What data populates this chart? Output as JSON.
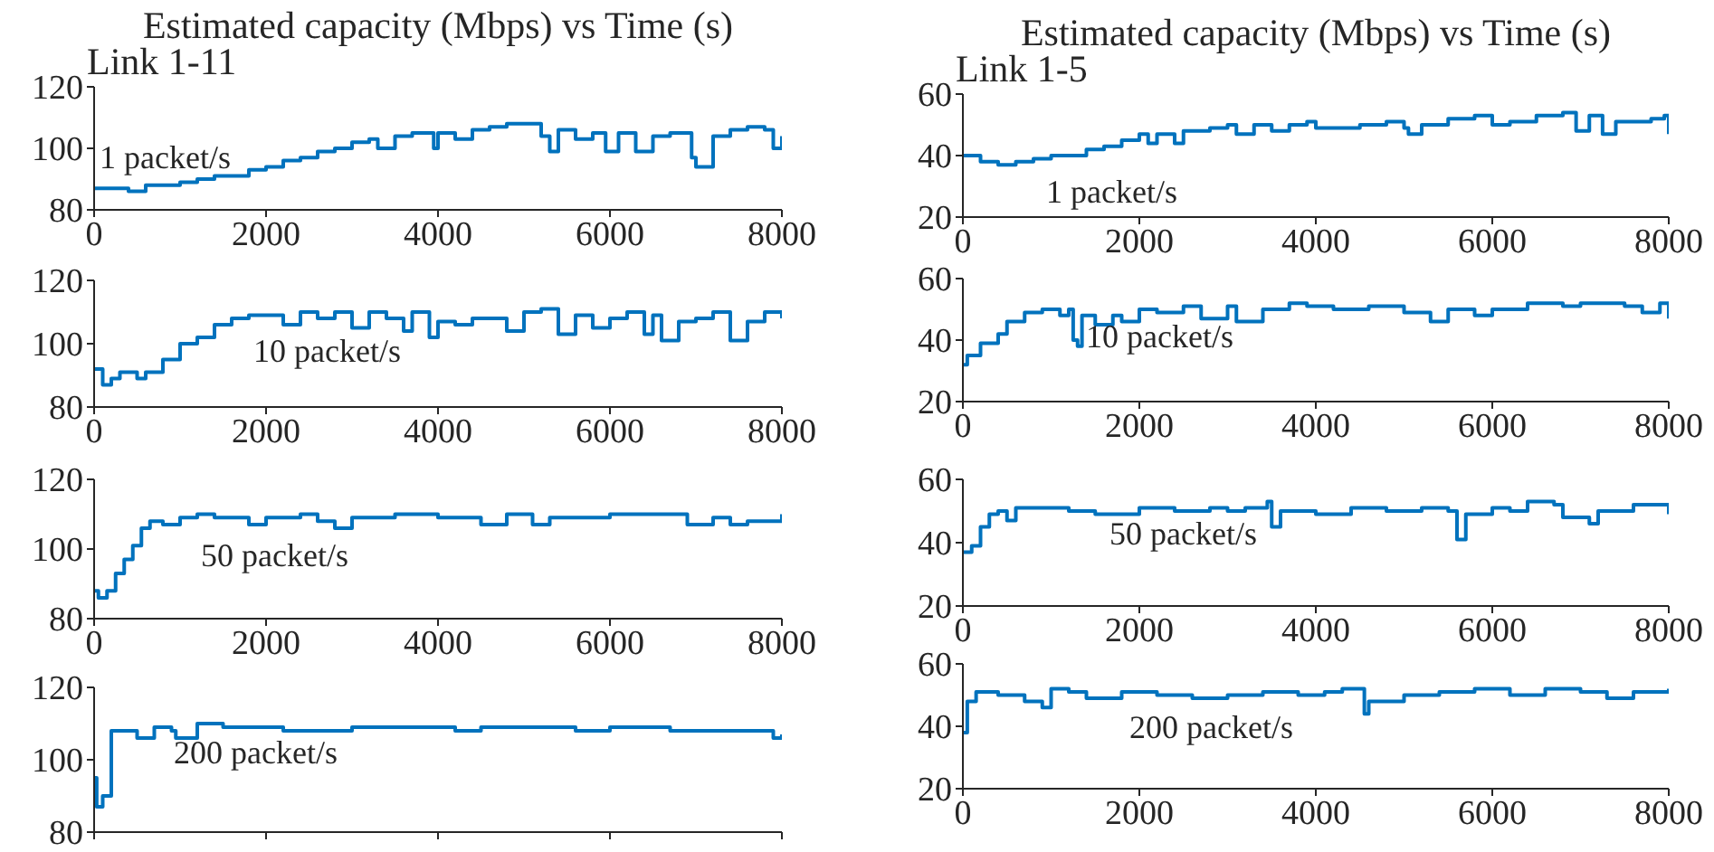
{
  "chart_data": [
    {
      "type": "step",
      "title": "Estimated capacity (Mbps) vs Time (s)",
      "subtitle": "Link 1-11",
      "annotations": [
        "1 packet/s"
      ],
      "color": "#0072bd",
      "xlim": [
        0,
        8000
      ],
      "xticks": [
        0,
        2000,
        4000,
        6000,
        8000
      ],
      "ylim": [
        80,
        120
      ],
      "yticks": [
        80,
        100,
        120
      ],
      "x": [
        0,
        200,
        400,
        600,
        800,
        1000,
        1200,
        1400,
        1600,
        1800,
        2000,
        2200,
        2400,
        2600,
        2800,
        3000,
        3200,
        3300,
        3500,
        3700,
        3950,
        4000,
        4200,
        4400,
        4600,
        4800,
        5000,
        5200,
        5300,
        5400,
        5600,
        5800,
        5950,
        6100,
        6300,
        6500,
        6700,
        6950,
        7000,
        7200,
        7400,
        7600,
        7800,
        7900,
        8000
      ],
      "values": [
        87,
        87,
        86,
        88,
        88,
        89,
        90,
        91,
        91,
        93,
        94,
        96,
        97,
        99,
        100,
        102,
        103,
        100,
        104,
        105,
        100,
        105,
        103,
        106,
        107,
        108,
        108,
        104,
        99,
        106,
        103,
        105,
        99,
        105,
        99,
        104,
        105,
        97,
        94,
        104,
        106,
        107,
        106,
        100,
        104
      ]
    },
    {
      "type": "step",
      "annotations": [
        "10 packet/s"
      ],
      "color": "#0072bd",
      "xlim": [
        0,
        8000
      ],
      "xticks": [
        0,
        2000,
        4000,
        6000,
        8000
      ],
      "ylim": [
        80,
        120
      ],
      "yticks": [
        80,
        100,
        120
      ],
      "x": [
        0,
        100,
        200,
        300,
        500,
        600,
        800,
        1000,
        1200,
        1400,
        1600,
        1800,
        2000,
        2200,
        2400,
        2600,
        2800,
        3000,
        3200,
        3400,
        3600,
        3700,
        3900,
        4000,
        4200,
        4400,
        4600,
        4800,
        5000,
        5200,
        5400,
        5600,
        5800,
        6000,
        6200,
        6400,
        6500,
        6600,
        6800,
        7000,
        7200,
        7400,
        7600,
        7800,
        8000
      ],
      "values": [
        92,
        87,
        89,
        91,
        89,
        91,
        95,
        100,
        102,
        106,
        108,
        109,
        109,
        106,
        110,
        108,
        110,
        105,
        110,
        108,
        104,
        110,
        102,
        107,
        106,
        108,
        108,
        104,
        110,
        111,
        103,
        109,
        105,
        108,
        110,
        103,
        109,
        101,
        107,
        108,
        110,
        101,
        107,
        110,
        108
      ]
    },
    {
      "type": "step",
      "annotations": [
        "50 packet/s"
      ],
      "color": "#0072bd",
      "xlim": [
        0,
        8000
      ],
      "xticks": [
        0,
        2000,
        4000,
        6000,
        8000
      ],
      "ylim": [
        80,
        120
      ],
      "yticks": [
        80,
        100,
        120
      ],
      "x": [
        0,
        50,
        150,
        250,
        350,
        450,
        550,
        650,
        800,
        1000,
        1200,
        1400,
        1800,
        2000,
        2400,
        2600,
        2800,
        3000,
        3500,
        3800,
        4000,
        4500,
        4800,
        5000,
        5100,
        5300,
        5600,
        6000,
        6400,
        6800,
        6900,
        7200,
        7400,
        7600,
        8000
      ],
      "values": [
        88,
        86,
        88,
        93,
        97,
        101,
        106,
        108,
        107,
        109,
        110,
        109,
        107,
        109,
        110,
        108,
        106,
        109,
        110,
        110,
        109,
        107,
        110,
        110,
        107,
        109,
        109,
        110,
        110,
        110,
        107,
        109,
        107,
        108,
        110
      ]
    },
    {
      "type": "step",
      "annotations": [
        "200 packet/s"
      ],
      "color": "#0072bd",
      "xlim": [
        0,
        8000
      ],
      "xticks": [
        0,
        2000,
        4000,
        6000,
        8000
      ],
      "ylim": [
        80,
        120
      ],
      "yticks": [
        80,
        100,
        120
      ],
      "tick_labels": "y",
      "x": [
        0,
        30,
        100,
        200,
        400,
        500,
        700,
        900,
        950,
        1200,
        1500,
        2000,
        2200,
        3000,
        4000,
        4200,
        4500,
        5500,
        5600,
        6000,
        6500,
        6700,
        7200,
        7500,
        7800,
        7900,
        8000
      ],
      "values": [
        95,
        87,
        90,
        108,
        108,
        106,
        109,
        108,
        106,
        110,
        109,
        109,
        108,
        109,
        109,
        108,
        109,
        109,
        108,
        109,
        109,
        108,
        108,
        108,
        108,
        106,
        107
      ]
    },
    {
      "type": "step",
      "title": "Estimated capacity (Mbps) vs Time (s)",
      "subtitle": "Link 1-5",
      "annotations": [
        "1 packet/s"
      ],
      "color": "#0072bd",
      "xlim": [
        0,
        8000
      ],
      "xticks": [
        0,
        2000,
        4000,
        6000,
        8000
      ],
      "ylim": [
        20,
        60
      ],
      "yticks": [
        20,
        40,
        60
      ],
      "x": [
        0,
        200,
        400,
        600,
        800,
        1000,
        1200,
        1400,
        1600,
        1800,
        2000,
        2100,
        2200,
        2400,
        2500,
        2800,
        3000,
        3100,
        3300,
        3500,
        3700,
        3900,
        4000,
        4200,
        4500,
        4800,
        5000,
        5050,
        5200,
        5500,
        5800,
        6000,
        6200,
        6500,
        6800,
        6950,
        7100,
        7250,
        7400,
        7800,
        7950,
        8000
      ],
      "values": [
        40,
        38,
        37,
        38,
        39,
        40,
        40,
        42,
        43,
        45,
        47,
        44,
        47,
        44,
        48,
        49,
        50,
        47,
        50,
        48,
        50,
        51,
        49,
        49,
        50,
        51,
        49,
        47,
        50,
        52,
        53,
        50,
        51,
        53,
        54,
        48,
        53,
        47,
        51,
        52,
        53,
        47
      ]
    },
    {
      "type": "step",
      "annotations": [
        "10 packet/s"
      ],
      "color": "#0072bd",
      "xlim": [
        0,
        8000
      ],
      "xticks": [
        0,
        2000,
        4000,
        6000,
        8000
      ],
      "ylim": [
        20,
        60
      ],
      "yticks": [
        20,
        40,
        60
      ],
      "x": [
        0,
        50,
        200,
        400,
        500,
        700,
        900,
        1100,
        1200,
        1250,
        1300,
        1350,
        1500,
        1700,
        1800,
        2000,
        2200,
        2500,
        2700,
        3000,
        3100,
        3400,
        3700,
        3900,
        4200,
        4600,
        5000,
        5300,
        5500,
        5800,
        6000,
        6400,
        6800,
        7000,
        7200,
        7500,
        7700,
        7900,
        8000
      ],
      "values": [
        32,
        35,
        39,
        42,
        46,
        49,
        50,
        48,
        50,
        40,
        38,
        48,
        45,
        48,
        46,
        50,
        49,
        51,
        47,
        51,
        46,
        50,
        52,
        51,
        50,
        51,
        49,
        46,
        50,
        48,
        50,
        52,
        51,
        52,
        52,
        51,
        49,
        52,
        47
      ]
    },
    {
      "type": "step",
      "annotations": [
        "50 packet/s"
      ],
      "color": "#0072bd",
      "xlim": [
        0,
        8000
      ],
      "xticks": [
        0,
        2000,
        4000,
        6000,
        8000
      ],
      "ylim": [
        20,
        60
      ],
      "yticks": [
        20,
        40,
        60
      ],
      "x": [
        0,
        100,
        200,
        300,
        400,
        500,
        600,
        900,
        1200,
        1500,
        2000,
        2400,
        2800,
        3000,
        3200,
        3450,
        3500,
        3600,
        4000,
        4400,
        4800,
        5200,
        5500,
        5600,
        5700,
        6000,
        6200,
        6400,
        6700,
        6800,
        7100,
        7200,
        7400,
        7600,
        8000
      ],
      "values": [
        37,
        39,
        45,
        49,
        50,
        47,
        51,
        51,
        50,
        49,
        51,
        50,
        51,
        50,
        51,
        53,
        45,
        50,
        49,
        51,
        50,
        51,
        50,
        41,
        49,
        51,
        50,
        53,
        52,
        48,
        46,
        50,
        50,
        52,
        49
      ]
    },
    {
      "type": "step",
      "annotations": [
        "200 packet/s"
      ],
      "color": "#0072bd",
      "xlim": [
        0,
        8000
      ],
      "xticks": [
        0,
        2000,
        4000,
        6000,
        8000
      ],
      "ylim": [
        20,
        60
      ],
      "yticks": [
        20,
        40,
        60
      ],
      "x": [
        0,
        50,
        150,
        400,
        700,
        900,
        1000,
        1200,
        1400,
        1800,
        2200,
        2600,
        3000,
        3400,
        3800,
        4100,
        4300,
        4550,
        4600,
        5000,
        5400,
        5800,
        6200,
        6600,
        7000,
        7300,
        7600,
        8000
      ],
      "values": [
        38,
        48,
        51,
        50,
        48,
        46,
        52,
        51,
        49,
        51,
        50,
        49,
        50,
        51,
        50,
        51,
        52,
        44,
        48,
        50,
        51,
        52,
        50,
        52,
        51,
        49,
        51,
        52
      ]
    }
  ]
}
